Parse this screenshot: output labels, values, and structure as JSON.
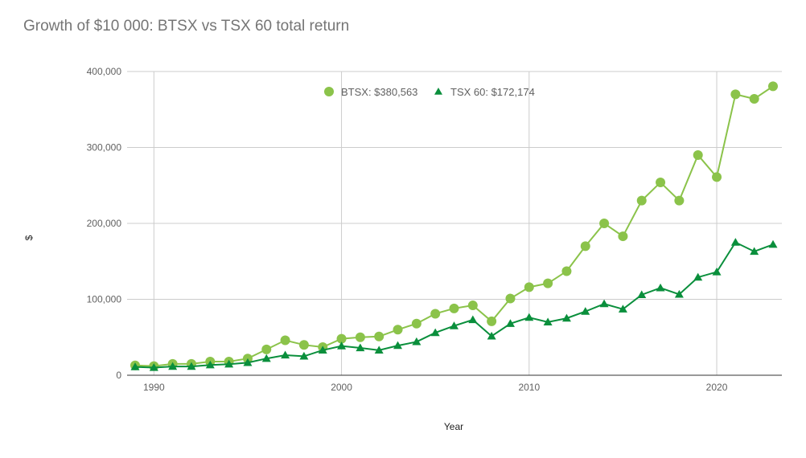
{
  "chart_data": {
    "type": "line",
    "title": "Growth of $10 000: BTSX vs TSX 60 total return",
    "xlabel": "Year",
    "ylabel": "$",
    "xlim": [
      1989,
      2023
    ],
    "ylim": [
      0,
      400000
    ],
    "x_ticks": [
      {
        "value": 1990,
        "label": "1990"
      },
      {
        "value": 2000,
        "label": "2000"
      },
      {
        "value": 2010,
        "label": "2010"
      },
      {
        "value": 2020,
        "label": "2020"
      }
    ],
    "y_ticks": [
      {
        "value": 0,
        "label": "0"
      },
      {
        "value": 100000,
        "label": "100,000"
      },
      {
        "value": 200000,
        "label": "200,000"
      },
      {
        "value": 300000,
        "label": "300,000"
      },
      {
        "value": 400000,
        "label": "400,000"
      }
    ],
    "grid": true,
    "legend_position": "top",
    "x": [
      1989,
      1990,
      1991,
      1992,
      1993,
      1994,
      1995,
      1996,
      1997,
      1998,
      1999,
      2000,
      2001,
      2002,
      2003,
      2004,
      2005,
      2006,
      2007,
      2008,
      2009,
      2010,
      2011,
      2012,
      2013,
      2014,
      2015,
      2016,
      2017,
      2018,
      2019,
      2020,
      2021,
      2022,
      2023
    ],
    "series": [
      {
        "name": "BTSX: $380,563",
        "color": "#8bc34a",
        "marker": "circle",
        "values": [
          13000,
          12000,
          15000,
          15000,
          18000,
          18000,
          22000,
          34000,
          46000,
          40000,
          37000,
          48000,
          50000,
          51000,
          60000,
          68000,
          81000,
          88000,
          92000,
          71000,
          101000,
          116000,
          121000,
          137000,
          170000,
          200000,
          183000,
          230000,
          254000,
          230000,
          290000,
          261000,
          370000,
          364000,
          380563
        ]
      },
      {
        "name": "TSX 60: $172,174",
        "color": "#0a8f3c",
        "marker": "triangle",
        "values": [
          11000,
          10000,
          11500,
          11500,
          13500,
          14500,
          16500,
          22000,
          26500,
          25000,
          33000,
          38500,
          36000,
          33000,
          39000,
          44000,
          56000,
          65000,
          73000,
          51500,
          68000,
          76000,
          70000,
          75000,
          84000,
          94000,
          87000,
          106000,
          115000,
          106500,
          129000,
          136000,
          175000,
          163000,
          172174
        ]
      }
    ]
  }
}
